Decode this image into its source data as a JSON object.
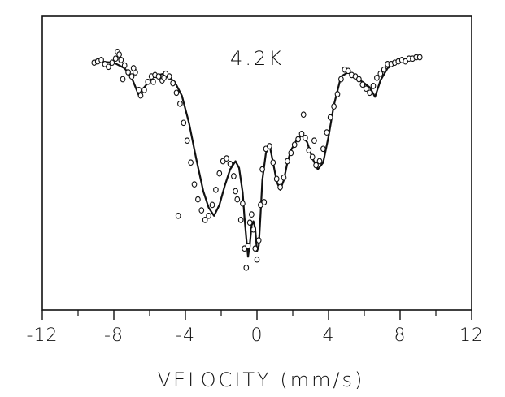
{
  "chart_data": {
    "type": "scatter",
    "title": "",
    "annotation": "4.2K",
    "xlabel": "VELOCITY (mm/s)",
    "ylabel": "",
    "xlim": [
      -12,
      12
    ],
    "x_ticks": [
      -12,
      -8,
      -4,
      0,
      4,
      8,
      12
    ],
    "x_tick_labels": [
      "-12",
      "-8",
      "-4",
      "0",
      "4",
      "8",
      "12"
    ],
    "x_minor_ticks": [
      -10,
      -6,
      -2,
      2,
      6,
      10
    ],
    "y_ticks_visible": false,
    "grid": false,
    "legend": "none",
    "series": [
      {
        "kind": "measured-points",
        "marker": "open-circle",
        "x": [
          -9.1,
          -8.9,
          -8.7,
          -8.5,
          -8.3,
          -8.1,
          -7.9,
          -7.8,
          -7.6,
          -7.4,
          -7.2,
          -7.0,
          -6.8,
          -6.6,
          -6.5,
          -6.3,
          -6.1,
          -5.9,
          -5.7,
          -5.5,
          -5.3,
          -5.1,
          -4.9,
          -4.7,
          -4.5,
          -4.3,
          -4.1,
          -3.9,
          -3.7,
          -3.5,
          -3.3,
          -3.1,
          -2.9,
          -2.7,
          -2.5,
          -2.3,
          -2.1,
          -1.9,
          -1.7,
          -1.5,
          -1.3,
          -1.1,
          -0.9,
          -0.7,
          -0.6,
          -0.5,
          -0.4,
          -0.3,
          -0.2,
          -0.1,
          0.0,
          0.1,
          0.2,
          0.3,
          0.5,
          0.7,
          0.9,
          1.1,
          1.3,
          1.5,
          1.7,
          1.9,
          2.1,
          2.3,
          2.5,
          2.7,
          2.9,
          3.1,
          3.3,
          3.5,
          3.7,
          3.9,
          4.1,
          4.3,
          4.5,
          4.7,
          4.9,
          5.1,
          5.3,
          5.5,
          5.7,
          5.9,
          6.1,
          6.3,
          6.5,
          6.7,
          6.9,
          7.1,
          7.3,
          7.5,
          7.7,
          7.9,
          8.1,
          8.3,
          8.5,
          8.7,
          8.9,
          9.1,
          -7.7,
          -7.5,
          -6.9,
          -5.8,
          -5.2,
          -4.4,
          -1.2,
          -0.8,
          0.4,
          2.6,
          3.2
        ],
        "y": [
          99.6,
          99.7,
          99.8,
          99.5,
          99.3,
          99.6,
          99.9,
          100.4,
          99.8,
          99.4,
          98.9,
          98.6,
          98.9,
          97.6,
          97.2,
          97.6,
          98.2,
          98.6,
          98.7,
          98.6,
          98.3,
          98.8,
          98.6,
          98.1,
          97.4,
          96.6,
          95.2,
          93.9,
          92.3,
          90.7,
          89.6,
          88.8,
          88.1,
          88.4,
          89.2,
          90.3,
          91.5,
          92.4,
          92.6,
          92.2,
          91.3,
          89.6,
          88.1,
          86.0,
          84.6,
          86.2,
          87.9,
          88.5,
          87.4,
          86.0,
          85.2,
          86.6,
          89.2,
          91.8,
          93.3,
          93.5,
          92.3,
          91.1,
          90.5,
          91.2,
          92.4,
          93.0,
          93.6,
          94.0,
          94.4,
          94.1,
          93.2,
          92.7,
          92.1,
          92.4,
          93.3,
          94.5,
          95.6,
          96.4,
          97.3,
          98.4,
          99.1,
          99.0,
          98.7,
          98.6,
          98.4,
          98.0,
          97.7,
          97.4,
          97.9,
          98.5,
          98.8,
          99.1,
          99.5,
          99.5,
          99.6,
          99.7,
          99.8,
          99.7,
          99.9,
          99.9,
          100.0,
          100.0,
          100.2,
          98.4,
          99.2,
          98.2,
          98.5,
          88.4,
          90.2,
          89.3,
          89.4,
          95.8,
          93.9
        ],
        "color": "#111111"
      },
      {
        "kind": "fitted-curve",
        "x": [
          -9,
          -8,
          -7.4,
          -7,
          -6.6,
          -6.3,
          -5.8,
          -5.2,
          -4.6,
          -4.2,
          -3.8,
          -3.4,
          -3,
          -2.7,
          -2.4,
          -2.1,
          -1.8,
          -1.5,
          -1.2,
          -1,
          -0.8,
          -0.7,
          -0.6,
          -0.5,
          -0.4,
          -0.3,
          -0.2,
          -0.1,
          0,
          0.1,
          0.2,
          0.3,
          0.5,
          0.7,
          0.9,
          1.1,
          1.3,
          1.5,
          1.7,
          1.9,
          2.2,
          2.5,
          2.8,
          3.1,
          3.4,
          3.7,
          4,
          4.3,
          4.7,
          5.1,
          5.5,
          5.9,
          6.3,
          6.6,
          6.9,
          7.3,
          7.8,
          8.3,
          8.8,
          9.2
        ],
        "y": [
          99.7,
          99.6,
          99.2,
          98.5,
          97.2,
          97.8,
          98.6,
          98.8,
          98.2,
          97.2,
          95.2,
          92.6,
          90.2,
          89.0,
          88.4,
          89.2,
          90.6,
          91.8,
          92.4,
          91.9,
          90.1,
          88.3,
          86.8,
          85.4,
          86.3,
          87.7,
          88.0,
          87.5,
          85.8,
          86.2,
          88.5,
          91.0,
          93.0,
          93.6,
          92.3,
          90.9,
          90.3,
          91.0,
          92.3,
          93.2,
          93.9,
          94.3,
          93.8,
          92.6,
          91.8,
          92.3,
          94.2,
          96.5,
          98.6,
          98.9,
          98.5,
          98.2,
          97.8,
          97.1,
          98.3,
          99.2,
          99.6,
          99.8,
          99.9,
          100.0
        ],
        "color": "#111111"
      }
    ],
    "ylim": [
      81.5,
      103
    ]
  }
}
